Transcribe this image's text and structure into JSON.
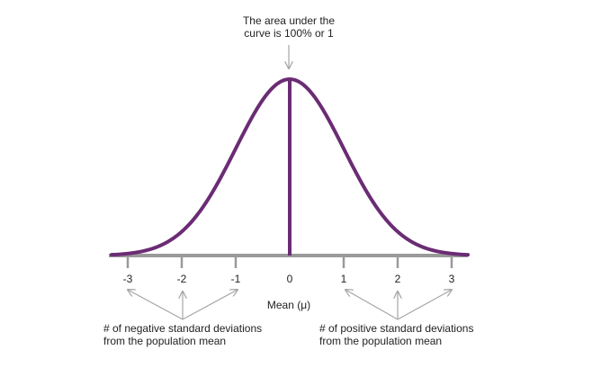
{
  "annotations": {
    "area_note_line1": "The area under the",
    "area_note_line2": "curve is 100% or 1",
    "mean_label": "Mean (μ)",
    "negative_note_line1": "# of negative standard deviations",
    "negative_note_line2": "from the population mean",
    "positive_note_line1": "# of positive standard deviations",
    "positive_note_line2": "from the population mean"
  },
  "chart_data": {
    "type": "line",
    "curve": "normal distribution (bell curve)",
    "x_ticks": [
      "-3",
      "-2",
      "-1",
      "0",
      "1",
      "2",
      "3"
    ],
    "x_range": [
      -3.3,
      3.3
    ],
    "mean_marker_at": 0,
    "colors": {
      "curve": "#6b2c74",
      "axis": "#9a9a9a",
      "arrows": "#a5a5a5",
      "text": "#222222"
    }
  }
}
